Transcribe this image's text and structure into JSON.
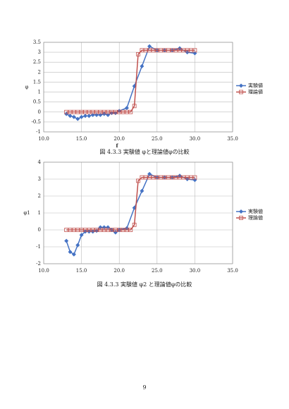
{
  "chart_data": [
    {
      "type": "line",
      "y_label": "φ",
      "x_label": "f",
      "caption": "図 4.3.3 実験値 φと理論値φの比較",
      "xlim": [
        10,
        35
      ],
      "xticks": [
        {
          "value": 10,
          "label": "10.0"
        },
        {
          "value": 15,
          "label": "15.0"
        },
        {
          "value": 20,
          "label": "20.0"
        },
        {
          "value": 25,
          "label": "25.0"
        },
        {
          "value": 30,
          "label": "30.0"
        },
        {
          "value": 35,
          "label": "35.0"
        }
      ],
      "ylim": [
        -1,
        3.5
      ],
      "yticks": [
        -1,
        -0.5,
        0,
        0.5,
        1,
        1.5,
        2,
        2.5,
        3,
        3.5
      ],
      "grid": true,
      "legend": "right",
      "series": [
        {
          "name": "実験値",
          "color": "#4472c4",
          "marker": "diamond",
          "x": [
            13,
            13.5,
            14,
            14.5,
            15,
            15.5,
            16,
            16.5,
            17,
            17.5,
            18,
            18.5,
            19,
            19.5,
            20,
            21,
            22,
            23,
            24,
            25,
            26,
            27,
            28,
            29,
            30
          ],
          "values": [
            -0.1,
            -0.2,
            -0.25,
            -0.35,
            -0.25,
            -0.2,
            -0.2,
            -0.15,
            -0.15,
            -0.15,
            -0.1,
            -0.15,
            -0.05,
            -0.05,
            0.05,
            0.2,
            1.3,
            2.3,
            3.3,
            3.1,
            3.1,
            3.1,
            3.2,
            3.0,
            2.95
          ]
        },
        {
          "name": "理論値",
          "color": "#c0504d",
          "marker": "square",
          "x": [
            13,
            13.5,
            14,
            14.5,
            15,
            15.5,
            16,
            16.5,
            17,
            17.5,
            18,
            18.5,
            19,
            19.5,
            20,
            20.5,
            21,
            21.5,
            22,
            22.5,
            23,
            23.5,
            24,
            24.5,
            25,
            25.5,
            26,
            26.5,
            27,
            27.5,
            28,
            28.5,
            29,
            29.5,
            30
          ],
          "values": [
            0,
            0,
            0,
            0,
            0,
            0,
            0,
            0,
            0,
            0,
            0,
            0,
            0,
            0,
            0,
            0,
            0,
            0,
            0.3,
            2.9,
            3.1,
            3.1,
            3.1,
            3.1,
            3.1,
            3.1,
            3.1,
            3.1,
            3.1,
            3.1,
            3.1,
            3.1,
            3.1,
            3.1,
            3.1
          ]
        }
      ]
    },
    {
      "type": "line",
      "y_label": "φ1",
      "caption": "図 4.3.3 実験値 φ2 と理論値φの比較",
      "xlim": [
        10,
        35
      ],
      "xticks": [
        {
          "value": 10,
          "label": "10.0"
        },
        {
          "value": 15,
          "label": "15.0"
        },
        {
          "value": 20,
          "label": "20.0"
        },
        {
          "value": 25,
          "label": "25.0"
        },
        {
          "value": 30,
          "label": "30.0"
        },
        {
          "value": 35,
          "label": "35.0"
        }
      ],
      "ylim": [
        -2,
        4
      ],
      "yticks": [
        -2,
        -1,
        0,
        1,
        2,
        3,
        4
      ],
      "grid": true,
      "legend": "right",
      "series": [
        {
          "name": "実験値",
          "color": "#4472c4",
          "marker": "diamond",
          "x": [
            13,
            13.5,
            14,
            14.5,
            15,
            15.5,
            16,
            16.5,
            17,
            17.5,
            18,
            18.5,
            19,
            19.5,
            20,
            21,
            22,
            23,
            24,
            25,
            26,
            27,
            28,
            29,
            30
          ],
          "values": [
            -0.65,
            -1.3,
            -1.45,
            -0.9,
            -0.3,
            -0.1,
            -0.1,
            -0.1,
            -0.05,
            0.15,
            0.15,
            0.15,
            0.0,
            -0.15,
            0.0,
            0.1,
            1.3,
            2.3,
            3.3,
            3.1,
            3.1,
            3.1,
            3.2,
            3.0,
            2.95
          ]
        },
        {
          "name": "理論値",
          "color": "#c0504d",
          "marker": "square",
          "x": [
            13,
            13.5,
            14,
            14.5,
            15,
            15.5,
            16,
            16.5,
            17,
            17.5,
            18,
            18.5,
            19,
            19.5,
            20,
            20.5,
            21,
            21.5,
            22,
            22.5,
            23,
            23.5,
            24,
            24.5,
            25,
            25.5,
            26,
            26.5,
            27,
            27.5,
            28,
            28.5,
            29,
            29.5,
            30
          ],
          "values": [
            0,
            0,
            0,
            0,
            0,
            0,
            0,
            0,
            0,
            0,
            0,
            0,
            0,
            0,
            0,
            0,
            0,
            0,
            0.3,
            2.9,
            3.1,
            3.1,
            3.1,
            3.1,
            3.1,
            3.1,
            3.1,
            3.1,
            3.1,
            3.1,
            3.1,
            3.1,
            3.1,
            3.1,
            3.1
          ]
        }
      ]
    }
  ],
  "page_number": "9"
}
